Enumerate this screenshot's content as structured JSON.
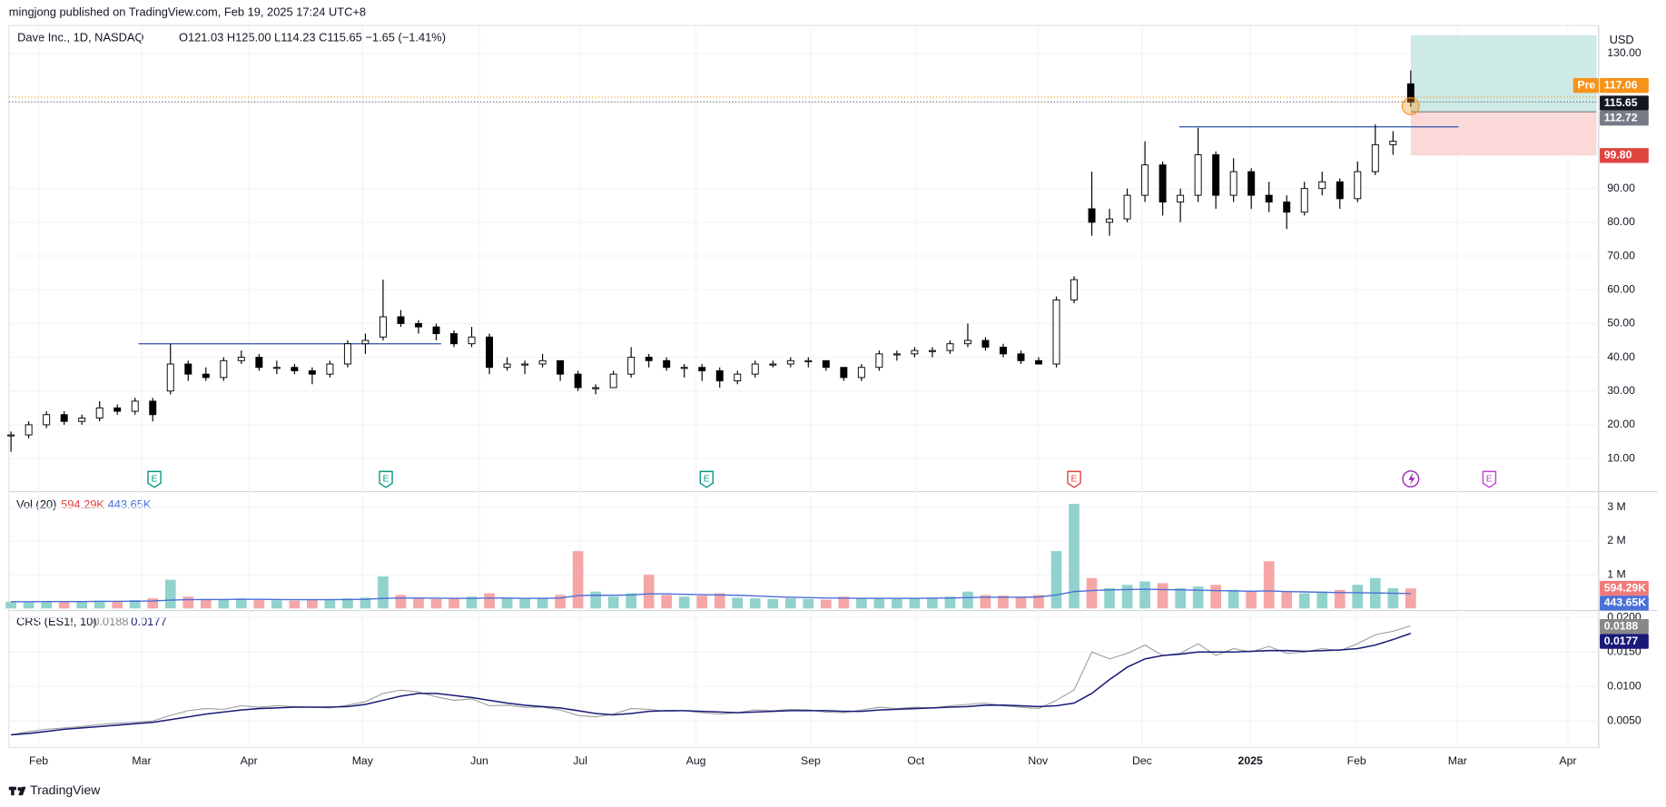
{
  "chart_data": {
    "type": "candlestick",
    "title": "mingjong published on TradingView.com, Feb 19, 2025 17:24 UTC+8",
    "symbol": "Dave Inc., 1D, NASDAQ",
    "ohlc_text": "O121.03 H125.00 L114.23 C115.65 −1.65 (−1.41%)",
    "currency": "USD",
    "categories": [
      "Feb",
      "Mar",
      "Apr",
      "May",
      "Jun",
      "Jul",
      "Aug",
      "Sep",
      "Oct",
      "Nov",
      "Dec",
      "2025",
      "Feb",
      "Mar",
      "Apr"
    ],
    "candles": [
      [
        17,
        18,
        12,
        17
      ],
      [
        17,
        21,
        16,
        20
      ],
      [
        20,
        24,
        19,
        23
      ],
      [
        23,
        24,
        20,
        21
      ],
      [
        21,
        23,
        20,
        22
      ],
      [
        22,
        27,
        21,
        25
      ],
      [
        25,
        26,
        23,
        24
      ],
      [
        24,
        28,
        23,
        27
      ],
      [
        27,
        28,
        21,
        23
      ],
      [
        30,
        44,
        29,
        38
      ],
      [
        38,
        39,
        33,
        35
      ],
      [
        35,
        37,
        33,
        34
      ],
      [
        34,
        40,
        33,
        39
      ],
      [
        39,
        42,
        38,
        40
      ],
      [
        40,
        41,
        36,
        37
      ],
      [
        37,
        39,
        35,
        37
      ],
      [
        37,
        38,
        35,
        36
      ],
      [
        36,
        37,
        32,
        35
      ],
      [
        35,
        39,
        34,
        38
      ],
      [
        38,
        45,
        37,
        44
      ],
      [
        44,
        47,
        41,
        45
      ],
      [
        46,
        63,
        45,
        52
      ],
      [
        52,
        54,
        49,
        50
      ],
      [
        50,
        51,
        47,
        49
      ],
      [
        49,
        50,
        45,
        47
      ],
      [
        47,
        48,
        43,
        44
      ],
      [
        44,
        49,
        43,
        46
      ],
      [
        46,
        47,
        35,
        37
      ],
      [
        37,
        40,
        36,
        38
      ],
      [
        38,
        39,
        35,
        38
      ],
      [
        38,
        41,
        37,
        39
      ],
      [
        39,
        39,
        33,
        35
      ],
      [
        35,
        36,
        30,
        31
      ],
      [
        31,
        32,
        29,
        31
      ],
      [
        31,
        36,
        31,
        35
      ],
      [
        35,
        43,
        34,
        40
      ],
      [
        40,
        41,
        37,
        39
      ],
      [
        39,
        40,
        36,
        37
      ],
      [
        37,
        38,
        34,
        37
      ],
      [
        37,
        38,
        33,
        36
      ],
      [
        36,
        37,
        31,
        33
      ],
      [
        33,
        36,
        32,
        35
      ],
      [
        35,
        39,
        34,
        38
      ],
      [
        38,
        39,
        37,
        38
      ],
      [
        38,
        40,
        37,
        39
      ],
      [
        39,
        40,
        37,
        39
      ],
      [
        39,
        39,
        36,
        37
      ],
      [
        37,
        37,
        33,
        34
      ],
      [
        34,
        38,
        33,
        37
      ],
      [
        37,
        42,
        36,
        41
      ],
      [
        41,
        42,
        39,
        41
      ],
      [
        41,
        43,
        40,
        42
      ],
      [
        42,
        43,
        40,
        42
      ],
      [
        42,
        45,
        41,
        44
      ],
      [
        44,
        50,
        43,
        45
      ],
      [
        45,
        46,
        42,
        43
      ],
      [
        43,
        44,
        40,
        41
      ],
      [
        41,
        42,
        38,
        39
      ],
      [
        39,
        40,
        38,
        38
      ],
      [
        38,
        58,
        37,
        57
      ],
      [
        57,
        64,
        56,
        63
      ],
      [
        84,
        95,
        76,
        80
      ],
      [
        80,
        84,
        76,
        81
      ],
      [
        81,
        90,
        80,
        88
      ],
      [
        88,
        104,
        86,
        97
      ],
      [
        97,
        98,
        82,
        86
      ],
      [
        86,
        90,
        80,
        88
      ],
      [
        88,
        108,
        86,
        100
      ],
      [
        100,
        101,
        84,
        88
      ],
      [
        88,
        99,
        86,
        95
      ],
      [
        95,
        96,
        84,
        88
      ],
      [
        88,
        92,
        83,
        86
      ],
      [
        86,
        88,
        78,
        83
      ],
      [
        83,
        92,
        82,
        90
      ],
      [
        90,
        95,
        88,
        92
      ],
      [
        92,
        93,
        84,
        87
      ],
      [
        87,
        98,
        86,
        95
      ],
      [
        95,
        109,
        94,
        103
      ],
      [
        103,
        107,
        100,
        104
      ],
      [
        121.03,
        125,
        114.23,
        115.65
      ]
    ],
    "up_color": "#ffffff",
    "down_color": "#000000",
    "ylim": [
      0.5,
      138
    ],
    "yticks": [
      {
        "value": 10,
        "label": "10.00"
      },
      {
        "value": 20,
        "label": "20.00"
      },
      {
        "value": 30,
        "label": "30.00"
      },
      {
        "value": 40,
        "label": "40.00"
      },
      {
        "value": 50,
        "label": "50.00"
      },
      {
        "value": 60,
        "label": "60.00"
      },
      {
        "value": 70,
        "label": "70.00"
      },
      {
        "value": 80,
        "label": "80.00"
      },
      {
        "value": 90,
        "label": "90.00"
      },
      {
        "value": 130,
        "label": "130.00"
      }
    ],
    "grid": true,
    "pre_label": "Pre",
    "pre_price": 117.06,
    "pre_color": "#f7931a",
    "position": {
      "target": 135.4,
      "entry": 112.72,
      "stop": {
        "value": 99.8,
        "label": "99.80"
      },
      "profit_color": "#cdeae6",
      "loss_color": "#fcd9d9"
    },
    "levels": [
      44,
      108.3
    ],
    "level_color": "#3f62ad",
    "events": [
      {
        "label": "E",
        "color": "#089981"
      },
      {
        "label": "E",
        "color": "#089981"
      },
      {
        "label": "E",
        "color": "#089981"
      },
      {
        "label": "E",
        "color": "#e0443f"
      },
      {
        "label": "E",
        "color": "#c040d8"
      }
    ],
    "volume": {
      "label": "Vol (20)",
      "values": [
        200000,
        180000,
        220000,
        190000,
        210000,
        230000,
        200000,
        250000,
        300000,
        850000,
        350000,
        280000,
        260000,
        300000,
        250000,
        240000,
        230000,
        260000,
        280000,
        300000,
        320000,
        950000,
        400000,
        300000,
        280000,
        300000,
        350000,
        450000,
        300000,
        280000,
        320000,
        400000,
        1700000,
        500000,
        350000,
        450000,
        1000000,
        400000,
        350000,
        380000,
        450000,
        320000,
        300000,
        280000,
        300000,
        280000,
        260000,
        350000,
        300000,
        320000,
        280000,
        300000,
        320000,
        350000,
        500000,
        400000,
        380000,
        350000,
        400000,
        1700000,
        3100000,
        900000,
        600000,
        700000,
        800000,
        750000,
        600000,
        650000,
        700000,
        550000,
        500000,
        1400000,
        500000,
        450000,
        500000,
        550000,
        700000,
        900000,
        600000,
        594290
      ],
      "last_label": "594.29K",
      "up_color": "#92d2cc",
      "down_color": "#f5a6a6",
      "ma": {
        "color": "#4a6fd8",
        "last_label": "443.65K",
        "values": [
          200000,
          200000,
          205000,
          205000,
          205000,
          210000,
          210000,
          215000,
          220000,
          250000,
          260000,
          265000,
          265000,
          270000,
          270000,
          265000,
          260000,
          260000,
          260000,
          265000,
          270000,
          300000,
          310000,
          310000,
          305000,
          300000,
          300000,
          310000,
          310000,
          300000,
          300000,
          310000,
          380000,
          390000,
          390000,
          400000,
          430000,
          430000,
          420000,
          410000,
          400000,
          390000,
          370000,
          350000,
          330000,
          320000,
          310000,
          310000,
          300000,
          300000,
          300000,
          300000,
          305000,
          310000,
          320000,
          330000,
          330000,
          330000,
          340000,
          400000,
          500000,
          530000,
          550000,
          560000,
          570000,
          560000,
          550000,
          540000,
          530000,
          520000,
          510000,
          520000,
          500000,
          490000,
          480000,
          470000,
          465000,
          460000,
          450000,
          443650
        ]
      },
      "ylim": [
        0,
        3400000
      ],
      "yticks": [
        {
          "value": 1000000,
          "label": "1 M"
        },
        {
          "value": 2000000,
          "label": "2 M"
        },
        {
          "value": 3000000,
          "label": "3 M"
        }
      ]
    },
    "crs": {
      "label": "CRS (ES1!, 10)",
      "series": [
        {
          "color": "#9a9a9a",
          "values": [
            0.003,
            0.0035,
            0.0038,
            0.004,
            0.0042,
            0.0045,
            0.0047,
            0.0048,
            0.005,
            0.0058,
            0.0065,
            0.0068,
            0.0067,
            0.0072,
            0.007,
            0.0072,
            0.0071,
            0.007,
            0.0069,
            0.0073,
            0.0078,
            0.009,
            0.0095,
            0.0092,
            0.0085,
            0.008,
            0.0082,
            0.0072,
            0.0073,
            0.007,
            0.007,
            0.0066,
            0.0058,
            0.0056,
            0.006,
            0.0068,
            0.0067,
            0.0064,
            0.0065,
            0.0062,
            0.006,
            0.0062,
            0.0066,
            0.0065,
            0.0067,
            0.0066,
            0.0063,
            0.0062,
            0.0066,
            0.007,
            0.0068,
            0.007,
            0.0069,
            0.0072,
            0.0074,
            0.0076,
            0.0072,
            0.007,
            0.0068,
            0.008,
            0.0095,
            0.015,
            0.014,
            0.0148,
            0.016,
            0.0145,
            0.0148,
            0.0162,
            0.0145,
            0.0155,
            0.015,
            0.0158,
            0.0148,
            0.015,
            0.0155,
            0.0152,
            0.0162,
            0.0175,
            0.018,
            0.0188
          ]
        },
        {
          "color": "#1a1a7a",
          "values": [
            0.003,
            0.0032,
            0.0035,
            0.0038,
            0.004,
            0.0042,
            0.0044,
            0.0046,
            0.0048,
            0.0052,
            0.0056,
            0.006,
            0.0063,
            0.0066,
            0.0068,
            0.0069,
            0.007,
            0.007,
            0.007,
            0.0071,
            0.0074,
            0.008,
            0.0086,
            0.009,
            0.009,
            0.0087,
            0.0084,
            0.008,
            0.0076,
            0.0073,
            0.0071,
            0.0069,
            0.0065,
            0.0061,
            0.0059,
            0.0061,
            0.0064,
            0.0065,
            0.0065,
            0.0064,
            0.0063,
            0.0062,
            0.0063,
            0.0064,
            0.0065,
            0.0065,
            0.0065,
            0.0064,
            0.0064,
            0.0066,
            0.0067,
            0.0068,
            0.0069,
            0.007,
            0.0071,
            0.0073,
            0.0073,
            0.0072,
            0.0071,
            0.0072,
            0.0076,
            0.009,
            0.011,
            0.0128,
            0.014,
            0.0145,
            0.0147,
            0.015,
            0.015,
            0.015,
            0.0151,
            0.0152,
            0.0152,
            0.0151,
            0.0152,
            0.0153,
            0.0155,
            0.016,
            0.0168,
            0.0177
          ]
        }
      ],
      "ylim": [
        0.001,
        0.0207
      ],
      "yticks": [
        {
          "value": 0.005,
          "label": "0.0050"
        },
        {
          "value": 0.01,
          "label": "0.0100"
        },
        {
          "value": 0.015,
          "label": "0.0150"
        },
        {
          "value": 0.02,
          "label": "0.0200"
        }
      ]
    },
    "footer": "TradingView"
  }
}
